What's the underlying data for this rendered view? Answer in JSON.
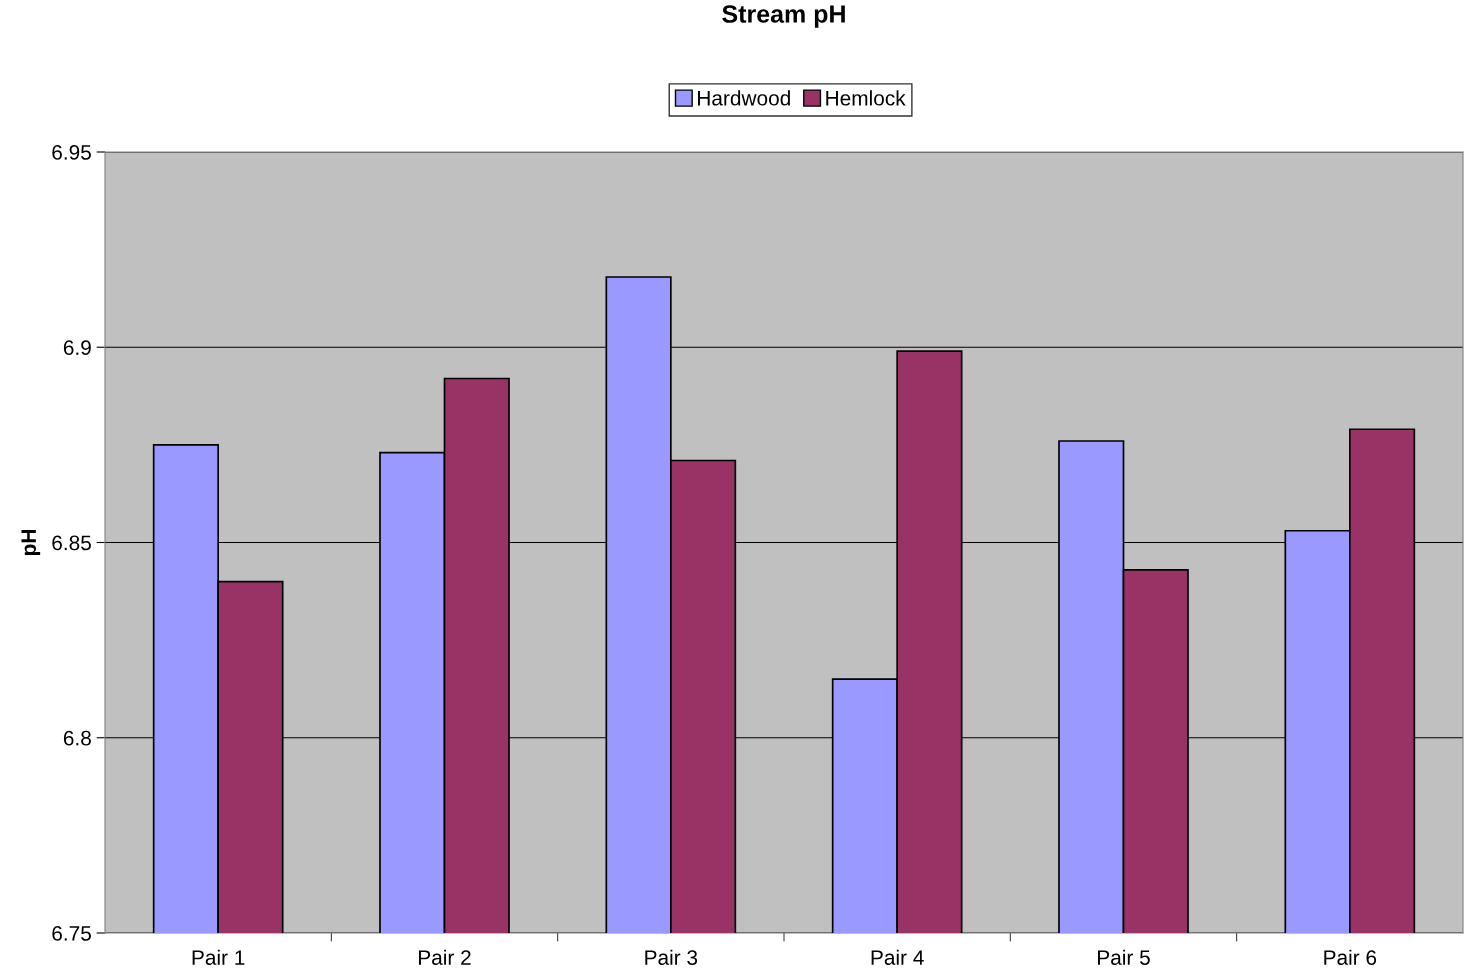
{
  "chart_data": {
    "type": "bar",
    "title": "Stream pH",
    "ylabel": "pH",
    "categories": [
      "Pair 1",
      "Pair 2",
      "Pair 3",
      "Pair 4",
      "Pair 5",
      "Pair 6"
    ],
    "series": [
      {
        "name": "Hardwood",
        "color": "#9999ff",
        "values": [
          6.875,
          6.873,
          6.918,
          6.815,
          6.876,
          6.853
        ]
      },
      {
        "name": "Hemlock",
        "color": "#993366",
        "values": [
          6.84,
          6.892,
          6.871,
          6.899,
          6.843,
          6.879
        ]
      }
    ],
    "ylim": [
      6.75,
      6.95
    ],
    "yticks": [
      6.75,
      6.8,
      6.85,
      6.9,
      6.95
    ],
    "grid": "y",
    "legend": "top"
  }
}
